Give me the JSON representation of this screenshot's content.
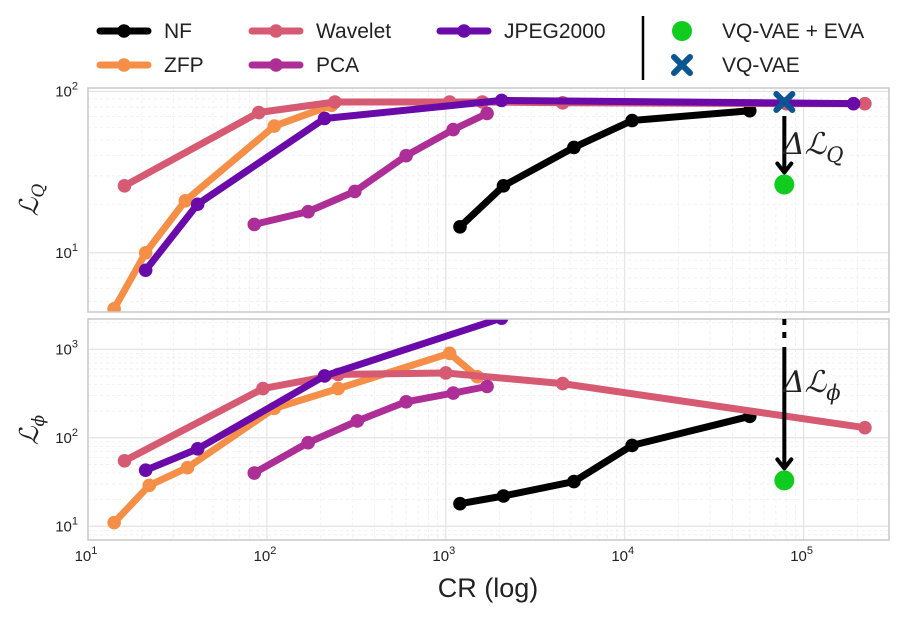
{
  "chart_data": [
    {
      "type": "line",
      "ylabel": "ℒ",
      "ylabel_sub": "Q",
      "xlabel": "CR (log)",
      "xscale": "log",
      "yscale": "log",
      "xlim": [
        10,
        300000
      ],
      "ylim": [
        4.3,
        105
      ],
      "xticks": [
        10,
        100,
        1000,
        10000,
        100000
      ],
      "xtick_labels": [
        [
          "10",
          "1"
        ],
        [
          "10",
          "2"
        ],
        [
          "10",
          "3"
        ],
        [
          "10",
          "4"
        ],
        [
          "10",
          "5"
        ]
      ],
      "yticks": [
        10,
        100
      ],
      "ytick_labels": [
        [
          "10",
          "1"
        ],
        [
          "10",
          "2"
        ]
      ],
      "grid": true,
      "series": [
        {
          "name": "NF",
          "color": "#000000",
          "x": [
            1200,
            2100,
            5200,
            11000,
            50000
          ],
          "y": [
            14.5,
            26,
            45,
            66,
            76
          ]
        },
        {
          "name": "ZFP",
          "color": "#f58f47",
          "x": [
            14,
            21,
            35,
            110,
            230
          ],
          "y": [
            4.5,
            10,
            21,
            61,
            82
          ]
        },
        {
          "name": "Wavelet",
          "color": "#d65a71",
          "x": [
            16,
            90,
            240,
            1050,
            1600,
            4500,
            80000,
            220000
          ],
          "y": [
            26,
            74,
            86,
            86,
            86,
            85,
            84,
            84
          ]
        },
        {
          "name": "PCA",
          "color": "#ad2e96",
          "x": [
            85,
            170,
            310,
            600,
            1100,
            1700
          ],
          "y": [
            15,
            18,
            24,
            40,
            58,
            73
          ]
        },
        {
          "name": "JPEG2000",
          "color": "#6a0aa8",
          "x": [
            21,
            41,
            210,
            2050,
            190000
          ],
          "y": [
            7.8,
            20,
            68,
            88,
            84
          ]
        },
        {
          "name": "VQ-VAE",
          "color": "#0a5592",
          "marker": "x",
          "x": [
            78000
          ],
          "y": [
            86
          ]
        },
        {
          "name": "VQ-VAE + EVA",
          "color": "#10cc1e",
          "marker": "o",
          "x": [
            78000
          ],
          "y": [
            26.5
          ]
        }
      ],
      "annotations": [
        {
          "text": "ΔℒQ",
          "kind": "arrow"
        }
      ]
    },
    {
      "type": "line",
      "ylabel": "ℒ",
      "ylabel_sub": "ϕ",
      "xlabel": "CR (log)",
      "xscale": "log",
      "yscale": "log",
      "xlim": [
        10,
        300000
      ],
      "ylim": [
        7,
        2200
      ],
      "xticks": [
        10,
        100,
        1000,
        10000,
        100000
      ],
      "xtick_labels": [
        [
          "10",
          "1"
        ],
        [
          "10",
          "2"
        ],
        [
          "10",
          "3"
        ],
        [
          "10",
          "4"
        ],
        [
          "10",
          "5"
        ]
      ],
      "yticks": [
        10,
        100,
        1000
      ],
      "ytick_labels": [
        [
          "10",
          "1"
        ],
        [
          "10",
          "2"
        ],
        [
          "10",
          "3"
        ]
      ],
      "grid": true,
      "series": [
        {
          "name": "NF",
          "color": "#000000",
          "x": [
            1200,
            2100,
            5200,
            11000,
            50000
          ],
          "y": [
            18,
            22,
            32,
            82,
            175
          ]
        },
        {
          "name": "ZFP",
          "color": "#f58f47",
          "x": [
            14,
            22,
            36,
            110,
            250,
            1050,
            1500
          ],
          "y": [
            11,
            29,
            46,
            215,
            360,
            900,
            490
          ]
        },
        {
          "name": "Wavelet",
          "color": "#d65a71",
          "x": [
            16,
            95,
            250,
            1000,
            4500,
            220000
          ],
          "y": [
            55,
            360,
            520,
            540,
            410,
            130
          ]
        },
        {
          "name": "PCA",
          "color": "#ad2e96",
          "x": [
            85,
            170,
            320,
            600,
            1100,
            1700
          ],
          "y": [
            40,
            88,
            155,
            255,
            320,
            380
          ]
        },
        {
          "name": "JPEG2000",
          "color": "#6a0aa8",
          "x": [
            21,
            41,
            210,
            2050
          ],
          "y": [
            43,
            75,
            500,
            2250
          ]
        },
        {
          "name": "VQ-VAE",
          "color": "#0a5592",
          "marker": "x",
          "x": [],
          "y": []
        },
        {
          "name": "VQ-VAE + EVA",
          "color": "#10cc1e",
          "marker": "o",
          "x": [
            78000
          ],
          "y": [
            33
          ]
        }
      ],
      "annotations": [
        {
          "text": "Δℒϕ",
          "kind": "arrow"
        }
      ]
    }
  ],
  "legend": {
    "items": [
      {
        "name": "NF",
        "color": "#000000",
        "style": "line"
      },
      {
        "name": "ZFP",
        "color": "#f58f47",
        "style": "line"
      },
      {
        "name": "Wavelet",
        "color": "#d65a71",
        "style": "line"
      },
      {
        "name": "PCA",
        "color": "#ad2e96",
        "style": "line"
      },
      {
        "name": "JPEG2000",
        "color": "#6a0aa8",
        "style": "line"
      },
      {
        "name": "VQ-VAE + EVA",
        "color": "#10cc1e",
        "style": "dot"
      },
      {
        "name": "VQ-VAE",
        "color": "#0a5592",
        "style": "cross"
      }
    ]
  },
  "annotations": {
    "top_delta": "ΔℒQ",
    "bottom_delta": "Δℒϕ"
  }
}
